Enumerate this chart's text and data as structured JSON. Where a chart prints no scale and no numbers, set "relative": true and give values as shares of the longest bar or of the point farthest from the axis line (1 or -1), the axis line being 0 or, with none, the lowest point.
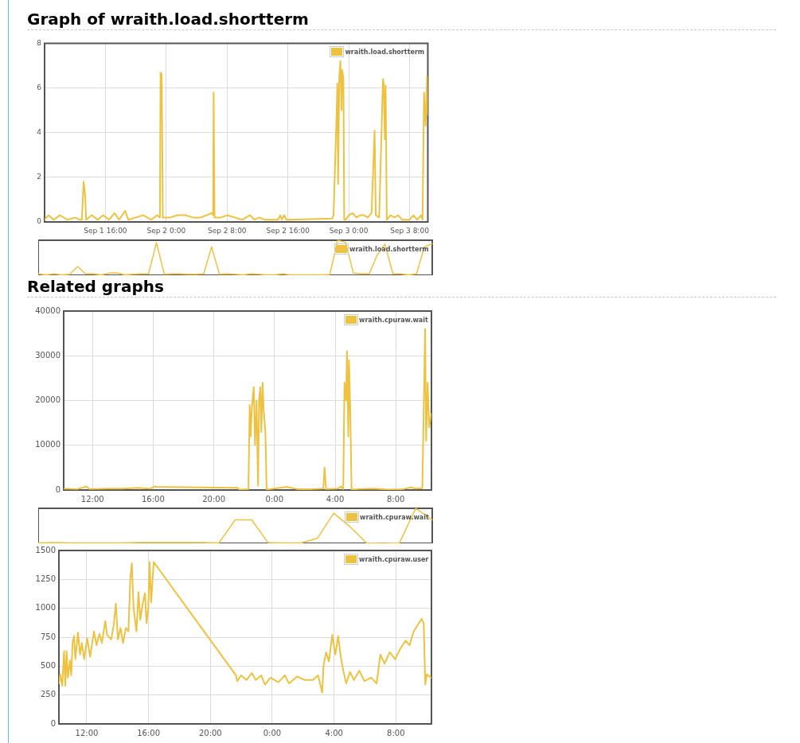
{
  "chart_data": [
    {
      "type": "line",
      "title": "Graph of wraith.load.shortterm",
      "x": [
        "--09-01T08:00",
        "--09-01T08:30",
        "--09-01T09:12",
        "--09-01T10:00",
        "--09-01T11:00",
        "--09-01T12:00",
        "--09-01T12:36",
        "--09-01T12:54",
        "--09-01T13:08",
        "--09-01T13:20",
        "--09-01T13:28",
        "--09-01T14:12",
        "--09-01T15:00",
        "--09-01T15:42",
        "--09-01T16:30",
        "--09-01T17:12",
        "--09-01T17:48",
        "--09-01T18:12",
        "--09-01T18:36",
        "--09-01T19:00",
        "--09-01T20:00",
        "--09-01T21:00",
        "--09-01T22:00",
        "--09-01T22:48",
        "--09-01T23:10",
        "--09-01T23:15",
        "--09-01T23:24",
        "--09-01T23:33",
        "--09-02T00:30",
        "--09-02T01:30",
        "--09-02T02:30",
        "--09-02T03:30",
        "--09-02T04:30",
        "--09-02T05:18",
        "--09-02T06:00",
        "--09-02T06:10",
        "--09-02T06:14",
        "--09-02T06:21",
        "--09-02T07:12",
        "--09-02T08:00",
        "--09-02T09:00",
        "--09-02T10:00",
        "--09-02T11:00",
        "--09-02T11:36",
        "--09-02T12:12",
        "--09-02T13:00",
        "--09-02T14:00",
        "--09-02T14:42",
        "--09-02T15:00",
        "--09-02T15:12",
        "--09-02T15:30",
        "--09-02T15:48",
        "--09-02T16:06",
        "--09-02T21:48",
        "--09-02T22:00",
        "--09-02T22:24",
        "--09-02T22:30",
        "--09-02T22:36",
        "--09-02T22:45",
        "--09-02T22:54",
        "--09-02T23:03",
        "--09-02T23:09",
        "--09-02T23:18",
        "--09-02T23:24",
        "--09-02T23:36",
        "--09-03T00:00",
        "--09-03T00:30",
        "--09-03T01:00",
        "--09-03T01:30",
        "--09-03T02:00",
        "--09-03T02:30",
        "--09-03T03:00",
        "--09-03T03:24",
        "--09-03T03:33",
        "--09-03T04:00",
        "--09-03T04:30",
        "--09-03T04:36",
        "--09-03T04:45",
        "--09-03T04:51",
        "--09-03T05:00",
        "--09-03T05:30",
        "--09-03T06:00",
        "--09-03T06:30",
        "--09-03T07:00",
        "--09-03T07:30",
        "--09-03T08:00",
        "--09-03T08:30",
        "--09-03T09:00",
        "--09-03T09:30",
        "--09-03T09:42",
        "--09-03T09:54",
        "--09-03T10:06",
        "--09-03T10:18",
        "--09-03T10:24"
      ],
      "series": [
        {
          "name": "wraith.load.shortterm",
          "color": "#edc240",
          "values": [
            0.1,
            0.3,
            0.1,
            0.3,
            0.1,
            0.2,
            0.1,
            0.1,
            1.8,
            1.2,
            0.1,
            0.3,
            0.1,
            0.3,
            0.1,
            0.4,
            0.1,
            0.3,
            0.5,
            0.1,
            0.2,
            0.3,
            0.1,
            0.3,
            0.2,
            6.7,
            6.6,
            0.2,
            0.2,
            0.3,
            0.3,
            0.2,
            0.2,
            0.3,
            0.4,
            0.3,
            5.8,
            0.2,
            0.2,
            0.3,
            0.2,
            0.1,
            0.3,
            0.1,
            0.2,
            0.1,
            0.1,
            0.1,
            0.3,
            0.1,
            0.3,
            0.1,
            0.1,
            0.15,
            0.3,
            4.8,
            6.2,
            1.7,
            6.5,
            7.2,
            5,
            6.8,
            6.4,
            0.1,
            0.1,
            0.3,
            0.4,
            0.2,
            0.3,
            0.3,
            0.2,
            0.4,
            4.1,
            0.3,
            0.2,
            6.4,
            6.2,
            3.7,
            6.1,
            0.1,
            0.3,
            0.2,
            0.3,
            0.1,
            0.1,
            0.1,
            0.3,
            0.1,
            0.3,
            0.1,
            5.8,
            4.3,
            6.5,
            4.8
          ]
        }
      ],
      "xlim": [
        "--09-01T08:00",
        "--09-03T10:24"
      ],
      "xticks": [
        {
          "value": "--09-01T16:00",
          "label": "Sep 1 16:00"
        },
        {
          "value": "--09-02T00:00",
          "label": "Sep 2 0:00"
        },
        {
          "value": "--09-02T08:00",
          "label": "Sep 2 8:00"
        },
        {
          "value": "--09-02T16:00",
          "label": "Sep 2 16:00"
        },
        {
          "value": "--09-03T00:00",
          "label": "Sep 3 0:00"
        },
        {
          "value": "--09-03T08:00",
          "label": "Sep 3 8:00"
        }
      ],
      "ylim": [
        0,
        8
      ],
      "yticks": [
        0,
        2,
        4,
        6,
        8
      ],
      "grid": true,
      "legend": "top right",
      "marker": "none"
    },
    {
      "type": "line",
      "relative": true,
      "categories": [
        null,
        null,
        null,
        null,
        null,
        null,
        null,
        null,
        null,
        null,
        null,
        null,
        null,
        null,
        null,
        null,
        null,
        null,
        null,
        null,
        null,
        null,
        null,
        null,
        null,
        null,
        null,
        null,
        null,
        null,
        null,
        null,
        null,
        null,
        null,
        null,
        null,
        null,
        null,
        null,
        null,
        null,
        null,
        null,
        null,
        null,
        null,
        null,
        null,
        null,
        null
      ],
      "series": [
        {
          "name": "wraith.load.shortterm",
          "color": "#edc240",
          "values": [
            0.04,
            0.01,
            0.04,
            0.01,
            0.03,
            0.25,
            0.04,
            0.04,
            0.01,
            0.06,
            0.07,
            0.01,
            0.03,
            0.04,
            0.04,
            0.93,
            0.03,
            0.04,
            0.04,
            0.03,
            0.03,
            0.04,
            0.81,
            0.03,
            0.04,
            0.03,
            0.01,
            0.04,
            0.03,
            0.01,
            0.01,
            0.04,
            0.01,
            0.01,
            0.01,
            0.01,
            0.01,
            0.02,
            1,
            0.94,
            0.06,
            0.04,
            0.04,
            0.57,
            0.89,
            0.04,
            0.04,
            0.01,
            0.04,
            0.81,
            0.9
          ]
        }
      ],
      "legend": "top right",
      "marker": "none"
    },
    {
      "type": "line",
      "title": "Related graphs",
      "x": [
        "--09-02T10:08",
        "--09-02T11:00",
        "--09-02T11:36",
        "--09-02T11:48",
        "--09-02T13:00",
        "--09-02T14:00",
        "--09-02T15:00",
        "--09-02T15:48",
        "--09-02T16:06",
        "--09-02T16:12",
        "--09-02T21:34",
        "--09-02T21:40",
        "--09-02T22:17",
        "--09-02T22:22",
        "--09-02T22:26",
        "--09-02T22:30",
        "--09-02T22:38",
        "--09-02T22:43",
        "--09-02T22:49",
        "--09-02T22:55",
        "--09-02T22:59",
        "--09-02T23:04",
        "--09-02T23:08",
        "--09-02T23:13",
        "--09-02T23:17",
        "--09-02T23:24",
        "--09-02T23:29",
        "--09-03T00:48",
        "--09-03T01:30",
        "--09-03T02:30",
        "--09-03T03:13",
        "--09-03T03:18",
        "--09-03T03:24",
        "--09-03T04:10",
        "--09-03T04:23",
        "--09-03T04:32",
        "--09-03T04:37",
        "--09-03T04:43",
        "--09-03T04:47",
        "--09-03T04:52",
        "--09-03T04:55",
        "--09-03T05:00",
        "--09-03T05:05",
        "--09-03T05:30",
        "--09-03T06:30",
        "--09-03T07:30",
        "--09-03T08:30",
        "--09-03T09:00",
        "--09-03T09:18",
        "--09-03T09:45",
        "--09-03T09:51",
        "--09-03T09:56",
        "--09-03T10:00",
        "--09-03T10:06",
        "--09-03T10:12",
        "--09-03T10:20"
      ],
      "series": [
        {
          "name": "wraith.cpuraw.wait",
          "color": "#edc240",
          "values": [
            300,
            200,
            800,
            200,
            300,
            300,
            500,
            300,
            800,
            700,
            500,
            100,
            200,
            19000,
            12000,
            18000,
            23000,
            10000,
            20000,
            1000,
            20000,
            23000,
            13000,
            24000,
            18000,
            13000,
            100,
            700,
            200,
            200,
            300,
            5000,
            200,
            300,
            800,
            200,
            24000,
            20000,
            31000,
            12000,
            29000,
            17000,
            100,
            200,
            300,
            100,
            200,
            600,
            300,
            400,
            20000,
            36000,
            11000,
            24000,
            14000,
            17000
          ]
        }
      ],
      "xlim": [
        "--09-02T10:06",
        "--09-03T10:21"
      ],
      "xticks": [
        {
          "value": "--09-02T12:00",
          "label": "12:00"
        },
        {
          "value": "--09-02T16:00",
          "label": "16:00"
        },
        {
          "value": "--09-02T20:00",
          "label": "20:00"
        },
        {
          "value": "--09-03T00:00",
          "label": "0:00"
        },
        {
          "value": "--09-03T04:00",
          "label": "4:00"
        },
        {
          "value": "--09-03T08:00",
          "label": "8:00"
        }
      ],
      "ylim": [
        0,
        40000
      ],
      "yticks": [
        0,
        10000,
        20000,
        30000,
        40000
      ],
      "grid": true,
      "legend": "top right",
      "marker": "none"
    },
    {
      "type": "line",
      "relative": true,
      "categories": [
        null,
        null,
        null,
        null,
        null,
        null,
        null,
        null,
        null,
        null,
        null,
        null,
        null,
        null,
        null,
        null,
        null,
        null,
        null,
        null,
        null,
        null,
        null,
        null,
        null
      ],
      "series": [
        {
          "name": "wraith.cpuraw.wait",
          "color": "#edc240",
          "values": [
            0.01,
            0.02,
            0.01,
            0.01,
            0.01,
            0.01,
            0.02,
            0.02,
            0.02,
            0.02,
            0.02,
            0.01,
            0.67,
            0.67,
            0.02,
            0.01,
            0.01,
            0.14,
            0.86,
            0.47,
            0.01,
            0,
            0.01,
            1,
            0.67
          ]
        }
      ],
      "legend": "top right",
      "marker": "none"
    },
    {
      "type": "line",
      "x": [
        "--09-02T10:12",
        "--09-02T10:17",
        "--09-02T10:25",
        "--09-02T10:32",
        "--09-02T10:37",
        "--09-02T10:42",
        "--09-02T10:47",
        "--09-02T10:55",
        "--09-02T11:00",
        "--09-02T11:05",
        "--09-02T11:11",
        "--09-02T11:16",
        "--09-02T11:26",
        "--09-02T11:34",
        "--09-02T11:41",
        "--09-02T11:50",
        "--09-02T12:02",
        "--09-02T12:13",
        "--09-02T12:28",
        "--09-02T12:38",
        "--09-02T12:49",
        "--09-02T12:59",
        "--09-02T13:12",
        "--09-02T13:19",
        "--09-02T13:35",
        "--09-02T13:45",
        "--09-02T13:53",
        "--09-02T14:01",
        "--09-02T14:11",
        "--09-02T14:21",
        "--09-02T14:32",
        "--09-02T14:42",
        "--09-02T14:49",
        "--09-02T14:55",
        "--09-02T15:02",
        "--09-02T15:13",
        "--09-02T15:21",
        "--09-02T15:28",
        "--09-02T15:38",
        "--09-02T15:46",
        "--09-02T15:52",
        "--09-02T15:59",
        "--09-02T16:04",
        "--09-02T16:10",
        "--09-02T16:20",
        "--09-02T21:39",
        "--09-02T21:44",
        "--09-02T21:59",
        "--09-02T22:20",
        "--09-02T22:41",
        "--09-02T22:56",
        "--09-02T23:17",
        "--09-02T23:32",
        "--09-02T23:53",
        "--09-03T00:24",
        "--09-03T00:49",
        "--09-03T01:05",
        "--09-03T01:36",
        "--09-03T02:07",
        "--09-03T02:38",
        "--09-03T02:58",
        "--09-03T03:14",
        "--09-03T03:19",
        "--09-03T03:29",
        "--09-03T03:40",
        "--09-03T03:53",
        "--09-03T04:05",
        "--09-03T04:16",
        "--09-03T04:26",
        "--09-03T04:36",
        "--09-03T04:47",
        "--09-03T05:02",
        "--09-03T05:17",
        "--09-03T05:38",
        "--09-03T05:58",
        "--09-03T06:24",
        "--09-03T06:45",
        "--09-03T07:00",
        "--09-03T07:16",
        "--09-03T07:36",
        "--09-03T07:57",
        "--09-03T08:17",
        "--09-03T08:38",
        "--09-03T08:53",
        "--09-03T09:09",
        "--09-03T09:29",
        "--09-03T09:40",
        "--09-03T09:48",
        "--09-03T09:54",
        "--09-03T10:00",
        "--09-03T10:16"
      ],
      "series": [
        {
          "name": "wraith.cpuraw.user",
          "color": "#edc240",
          "values": [
            350,
            430,
            330,
            630,
            330,
            630,
            400,
            550,
            420,
            700,
            760,
            560,
            790,
            600,
            700,
            560,
            740,
            580,
            800,
            680,
            780,
            700,
            890,
            770,
            730,
            860,
            1040,
            730,
            830,
            700,
            830,
            800,
            1250,
            1390,
            1000,
            800,
            1140,
            900,
            1050,
            1130,
            870,
            1000,
            1400,
            1050,
            1400,
            420,
            370,
            420,
            380,
            440,
            380,
            420,
            340,
            400,
            360,
            420,
            350,
            410,
            380,
            380,
            420,
            270,
            500,
            620,
            540,
            770,
            600,
            760,
            580,
            460,
            350,
            450,
            380,
            460,
            370,
            400,
            350,
            600,
            520,
            620,
            560,
            650,
            720,
            680,
            800,
            870,
            910,
            870,
            340,
            430,
            400
          ]
        }
      ],
      "xlim": [
        "--09-02T10:12",
        "--09-03T10:18"
      ],
      "xticks": [
        {
          "value": "--09-02T12:00",
          "label": "12:00"
        },
        {
          "value": "--09-02T16:00",
          "label": "16:00"
        },
        {
          "value": "--09-02T20:00",
          "label": "20:00"
        },
        {
          "value": "--09-03T00:00",
          "label": "0:00"
        },
        {
          "value": "--09-03T04:00",
          "label": "4:00"
        },
        {
          "value": "--09-03T08:00",
          "label": "8:00"
        }
      ],
      "ylim": [
        0,
        1500
      ],
      "yticks": [
        0,
        250,
        500,
        750,
        1000,
        1250,
        1500
      ],
      "grid": true,
      "legend": "top right",
      "marker": "none"
    }
  ]
}
